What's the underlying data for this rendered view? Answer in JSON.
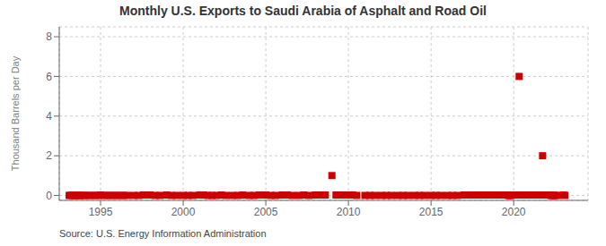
{
  "chart_data": {
    "type": "scatter",
    "title": "Monthly U.S. Exports to Saudi Arabia of Asphalt and Road Oil",
    "ylabel": "Thousand Barrels per Day",
    "annotations": [
      "Source: U.S. Energy Information Administration"
    ],
    "color": "#cc0000",
    "marker": "square",
    "grid": true,
    "xlim": [
      1992.5,
      2024.5
    ],
    "ylim": [
      -0.25,
      8.5
    ],
    "xticks": [
      1995,
      2000,
      2005,
      2010,
      2015,
      2020
    ],
    "yticks": [
      0,
      2,
      4,
      6,
      8
    ],
    "x": [
      1993.1,
      1993.2,
      1993.3,
      1993.4,
      1993.5,
      1993.6,
      1993.7,
      1993.8,
      1994.0,
      1994.1,
      1994.3,
      1994.5,
      1994.7,
      1994.9,
      1995.0,
      1995.2,
      1995.4,
      1995.6,
      1995.8,
      1996.0,
      1996.2,
      1996.4,
      1996.6,
      1997.0,
      1997.3,
      1997.6,
      1998.0,
      1998.3,
      1998.6,
      1999.0,
      1999.3,
      1999.6,
      2000.0,
      2000.3,
      2000.6,
      2001.0,
      2001.25,
      2001.5,
      2001.75,
      2002.0,
      2002.3,
      2002.6,
      2003.0,
      2003.3,
      2003.6,
      2004.0,
      2004.3,
      2004.6,
      2005.0,
      2005.3,
      2005.6,
      2006.0,
      2006.3,
      2006.6,
      2007.0,
      2007.3,
      2007.6,
      2008.0,
      2008.3,
      2008.6,
      2009.0,
      2009.25,
      2009.5,
      2009.75,
      2010.0,
      2010.25,
      2010.5,
      2011.0,
      2011.3,
      2011.6,
      2012.0,
      2012.3,
      2012.6,
      2013.0,
      2013.3,
      2013.6,
      2014.0,
      2014.3,
      2014.6,
      2015.0,
      2015.3,
      2015.6,
      2016.0,
      2016.3,
      2016.6,
      2017.0,
      2017.083,
      2017.167,
      2017.25,
      2017.333,
      2017.417,
      2017.5,
      2017.583,
      2017.667,
      2017.75,
      2017.833,
      2017.917,
      2018.0,
      2018.083,
      2018.167,
      2018.25,
      2018.333,
      2018.417,
      2018.5,
      2018.583,
      2018.667,
      2018.75,
      2018.833,
      2018.917,
      2019.0,
      2019.083,
      2019.167,
      2019.25,
      2019.333,
      2019.417,
      2019.5,
      2019.583,
      2019.667,
      2019.75,
      2019.833,
      2020.0,
      2020.083,
      2020.167,
      2020.25,
      2020.333,
      2020.5,
      2020.583,
      2020.667,
      2020.75,
      2020.833,
      2020.917,
      2021.0,
      2021.083,
      2021.167,
      2021.25,
      2021.333,
      2021.417,
      2021.5,
      2021.583,
      2021.667,
      2021.75,
      2021.833,
      2021.917,
      2022.0,
      2022.083,
      2022.167,
      2022.25,
      2022.333,
      2022.417,
      2022.5,
      2022.667,
      2023.0,
      2023.1
    ],
    "values": [
      0.0,
      0.0,
      0.0,
      0.0,
      0.0,
      0.0,
      0.0,
      0.0,
      0.0,
      0.0,
      0.0,
      0.0,
      0.0,
      0.0,
      0.02,
      0.0,
      0.0,
      0.0,
      0.0,
      0.0,
      0.0,
      0.0,
      0.0,
      0.0,
      0.0,
      0.02,
      0.02,
      0.0,
      0.0,
      0.02,
      0.0,
      0.0,
      0.0,
      0.0,
      0.0,
      0.02,
      0.02,
      0.0,
      0.0,
      0.0,
      0.02,
      0.0,
      0.0,
      0.0,
      0.02,
      0.0,
      0.0,
      0.02,
      0.02,
      0.0,
      0.0,
      0.02,
      0.02,
      0.0,
      0.0,
      0.02,
      0.0,
      0.02,
      0.02,
      0.02,
      1.0,
      0.02,
      0.02,
      0.02,
      0.02,
      0.02,
      0.0,
      0.0,
      0.0,
      0.0,
      0.0,
      0.0,
      0.0,
      0.0,
      0.0,
      0.0,
      0.0,
      0.0,
      0.0,
      0.0,
      0.0,
      0.0,
      0.0,
      0.0,
      0.0,
      0.02,
      0.02,
      0.02,
      0.02,
      0.02,
      0.02,
      0.02,
      0.02,
      0.02,
      0.02,
      0.02,
      0.02,
      0.02,
      0.02,
      0.02,
      0.02,
      0.02,
      0.02,
      0.02,
      0.02,
      0.02,
      0.02,
      0.02,
      0.02,
      0.02,
      0.02,
      0.02,
      0.02,
      0.02,
      0.02,
      0.02,
      0.02,
      0.0,
      0.0,
      0.0,
      0.02,
      0.02,
      0.02,
      0.02,
      6.0,
      0.02,
      0.02,
      0.02,
      0.02,
      0.02,
      0.02,
      0.02,
      0.02,
      0.02,
      0.02,
      0.02,
      0.02,
      0.02,
      0.02,
      0.02,
      2.0,
      0.02,
      0.02,
      0.02,
      0.02,
      0.02,
      0.0,
      0.0,
      0.0,
      0.0,
      0.0,
      0.02,
      0.0
    ]
  }
}
